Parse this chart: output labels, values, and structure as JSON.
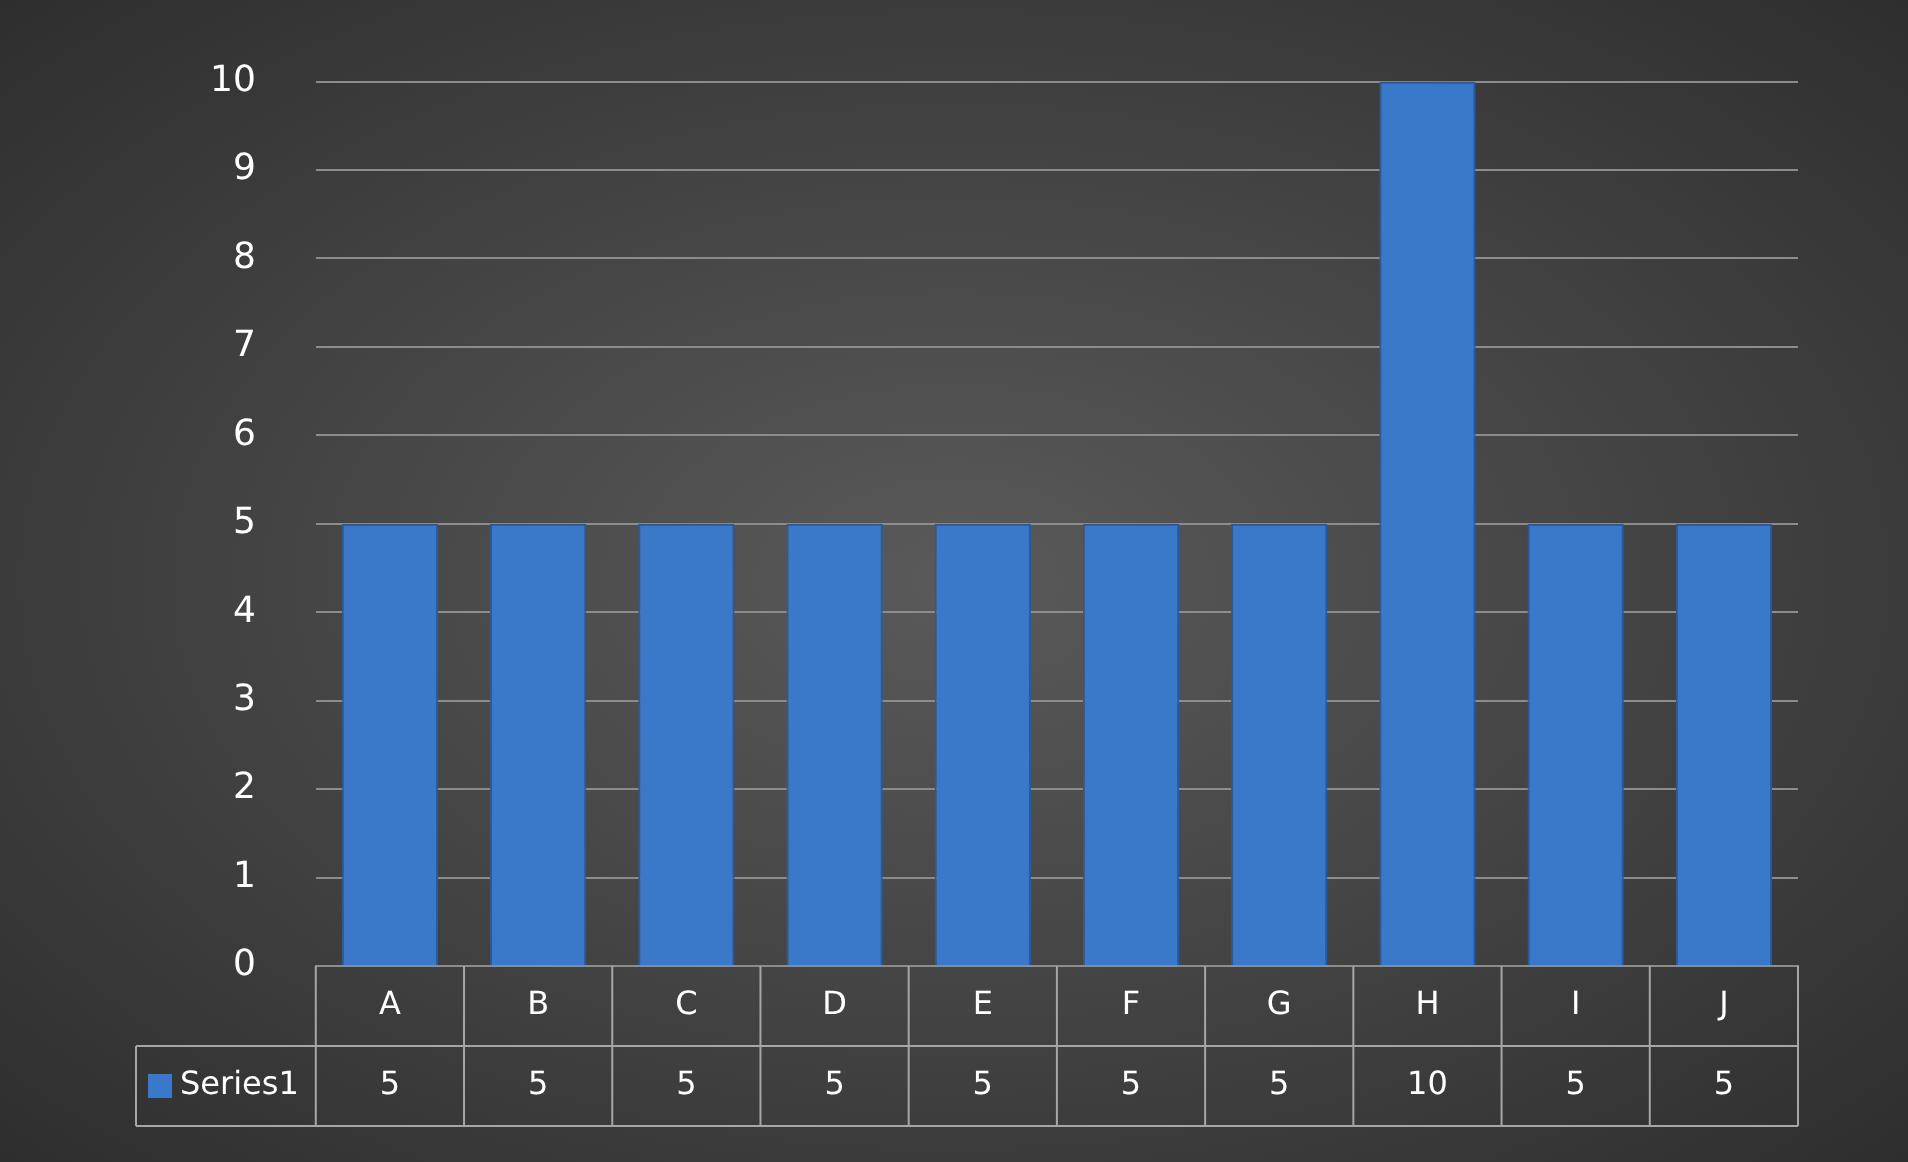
{
  "chart_data": {
    "type": "bar",
    "categories": [
      "A",
      "B",
      "C",
      "D",
      "E",
      "F",
      "G",
      "H",
      "I",
      "J"
    ],
    "series": [
      {
        "name": "Series1",
        "color": "#3a78c9",
        "values": [
          5,
          5,
          5,
          5,
          5,
          5,
          5,
          10,
          5,
          5
        ]
      }
    ],
    "ylim": [
      0,
      10
    ],
    "yticks": [
      0,
      1,
      2,
      3,
      4,
      5,
      6,
      7,
      8,
      9,
      10
    ],
    "grid": "y",
    "data_labels": true
  }
}
